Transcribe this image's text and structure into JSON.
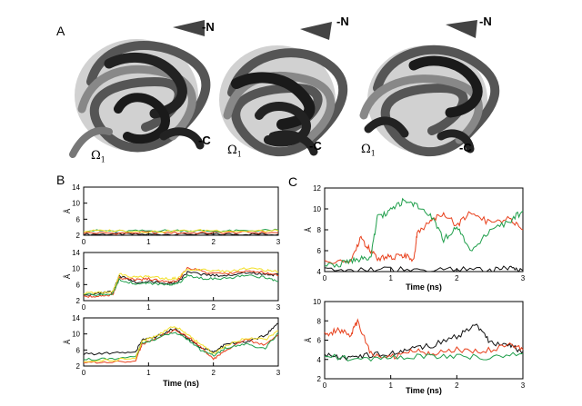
{
  "figure": {
    "panel_a_label": "A",
    "panel_b_label": "B",
    "panel_c_label": "C",
    "structures": [
      {
        "n_label": "-N",
        "c_label": "-C",
        "omega_label": "Ω",
        "omega_sub": "1"
      },
      {
        "n_label": "-N",
        "c_label": "-C",
        "omega_label": "Ω",
        "omega_sub": "1"
      },
      {
        "n_label": "-N",
        "c_label": "-C",
        "omega_label": "Ω",
        "omega_sub": "1"
      }
    ]
  },
  "colors": {
    "black": "#111111",
    "red": "#e8401c",
    "green": "#1e9e4a",
    "yellow": "#f2e02a",
    "gray_band": "#9a9a9a"
  },
  "chart_data": [
    {
      "type": "line",
      "panel": "B",
      "index": 0,
      "xlabel": "",
      "ylabel": "Å",
      "xlim": [
        0,
        3
      ],
      "ylim": [
        2,
        14
      ],
      "yticks": [
        2,
        6,
        10,
        14
      ],
      "xticks": [
        0,
        1,
        2,
        3
      ],
      "series": [
        {
          "color": "#111111",
          "x": [
            0,
            0.5,
            1,
            1.5,
            2,
            2.5,
            3
          ],
          "values": [
            2.2,
            2.3,
            2.2,
            2.3,
            2.2,
            2.3,
            2.2
          ]
        },
        {
          "color": "#e8401c",
          "x": [
            0,
            0.5,
            1,
            1.5,
            2,
            2.5,
            3
          ],
          "values": [
            2.6,
            2.5,
            2.7,
            2.6,
            2.6,
            2.7,
            2.6
          ]
        },
        {
          "color": "#1e9e4a",
          "x": [
            0,
            0.5,
            1,
            1.5,
            2,
            2.5,
            3
          ],
          "values": [
            3.2,
            3.0,
            3.1,
            3.2,
            3.0,
            3.1,
            3.3
          ]
        },
        {
          "color": "#f2e02a",
          "x": [
            0,
            0.5,
            1,
            1.5,
            2,
            2.5,
            3
          ],
          "values": [
            3.0,
            3.2,
            2.9,
            3.1,
            3.2,
            3.0,
            3.1
          ]
        }
      ]
    },
    {
      "type": "line",
      "panel": "B",
      "index": 1,
      "xlabel": "",
      "ylabel": "Å",
      "xlim": [
        0,
        3
      ],
      "ylim": [
        2,
        14
      ],
      "yticks": [
        2,
        6,
        10,
        14
      ],
      "xticks": [
        0,
        1,
        2,
        3
      ],
      "series": [
        {
          "color": "#111111",
          "x": [
            0,
            0.25,
            0.45,
            0.55,
            0.8,
            1.0,
            1.3,
            1.45,
            1.6,
            1.9,
            2.2,
            2.5,
            2.8,
            3.0
          ],
          "values": [
            3.4,
            3.8,
            4.2,
            8.2,
            6.6,
            6.8,
            6.4,
            6.6,
            9.0,
            8.4,
            8.2,
            9.0,
            8.6,
            8.4
          ]
        },
        {
          "color": "#e8401c",
          "x": [
            0,
            0.25,
            0.45,
            0.55,
            0.8,
            1.0,
            1.3,
            1.45,
            1.6,
            1.9,
            2.2,
            2.5,
            2.8,
            3.0
          ],
          "values": [
            3.0,
            3.2,
            3.6,
            7.6,
            7.2,
            7.4,
            6.8,
            7.0,
            10.2,
            9.0,
            8.6,
            9.4,
            9.0,
            8.2
          ]
        },
        {
          "color": "#1e9e4a",
          "x": [
            0,
            0.25,
            0.45,
            0.55,
            0.8,
            1.0,
            1.3,
            1.45,
            1.6,
            1.9,
            2.2,
            2.5,
            2.8,
            3.0
          ],
          "values": [
            3.6,
            3.4,
            3.8,
            7.2,
            6.2,
            6.4,
            6.0,
            6.2,
            8.2,
            7.4,
            7.6,
            8.2,
            7.8,
            6.8
          ]
        },
        {
          "color": "#f2e02a",
          "x": [
            0,
            0.25,
            0.45,
            0.55,
            0.8,
            1.0,
            1.3,
            1.45,
            1.6,
            1.9,
            2.2,
            2.5,
            2.8,
            3.0
          ],
          "values": [
            3.8,
            4.0,
            4.2,
            8.6,
            7.8,
            8.0,
            7.4,
            7.6,
            9.8,
            9.6,
            9.2,
            10.0,
            9.6,
            9.2
          ]
        }
      ]
    },
    {
      "type": "line",
      "panel": "B",
      "index": 2,
      "xlabel": "Time (ns)",
      "ylabel": "Å",
      "xlim": [
        0,
        3
      ],
      "ylim": [
        2,
        14
      ],
      "yticks": [
        2,
        6,
        10,
        14
      ],
      "xticks": [
        0,
        1,
        2,
        3
      ],
      "series": [
        {
          "color": "#111111",
          "x": [
            0,
            0.4,
            0.8,
            0.9,
            1.1,
            1.4,
            1.6,
            1.8,
            2.0,
            2.2,
            2.5,
            2.8,
            3.0
          ],
          "values": [
            5.0,
            5.2,
            5.4,
            8.6,
            9.2,
            11.4,
            9.0,
            6.4,
            5.6,
            7.6,
            8.0,
            9.6,
            12.6
          ]
        },
        {
          "color": "#e8401c",
          "x": [
            0,
            0.4,
            0.8,
            0.9,
            1.1,
            1.4,
            1.6,
            1.8,
            2.0,
            2.2,
            2.5,
            2.8,
            3.0
          ],
          "values": [
            2.8,
            3.0,
            3.2,
            7.4,
            8.8,
            11.0,
            9.4,
            6.8,
            3.6,
            6.0,
            8.6,
            7.2,
            9.8
          ]
        },
        {
          "color": "#1e9e4a",
          "x": [
            0,
            0.4,
            0.8,
            0.9,
            1.1,
            1.4,
            1.6,
            1.8,
            2.0,
            2.2,
            2.5,
            2.8,
            3.0
          ],
          "values": [
            3.6,
            3.8,
            4.2,
            7.8,
            8.6,
            10.6,
            8.6,
            6.0,
            4.6,
            6.6,
            7.4,
            6.4,
            10.2
          ]
        },
        {
          "color": "#f2e02a",
          "x": [
            0,
            0.4,
            0.8,
            0.9,
            1.1,
            1.4,
            1.6,
            1.8,
            2.0,
            2.2,
            2.5,
            2.8,
            3.0
          ],
          "values": [
            3.2,
            3.4,
            4.0,
            8.2,
            9.4,
            12.0,
            10.0,
            7.4,
            5.2,
            7.2,
            9.0,
            8.6,
            10.8
          ]
        }
      ]
    },
    {
      "type": "line",
      "panel": "C",
      "index": 0,
      "xlabel": "Time (ns)",
      "ylabel": "Å",
      "xlim": [
        0,
        3
      ],
      "ylim": [
        4,
        12
      ],
      "yticks": [
        4,
        6,
        8,
        10,
        12
      ],
      "xticks": [
        0,
        1,
        2,
        3
      ],
      "series": [
        {
          "color": "#111111",
          "x": [
            0,
            0.5,
            1,
            1.5,
            2,
            2.5,
            2.8,
            3.0
          ],
          "values": [
            4.1,
            4.1,
            4.2,
            4.1,
            4.2,
            4.1,
            4.3,
            4.1
          ]
        },
        {
          "color": "#e8401c",
          "x": [
            0,
            0.4,
            0.55,
            0.65,
            0.8,
            1.0,
            1.2,
            1.35,
            1.4,
            1.6,
            1.8,
            2.0,
            2.2,
            2.5,
            2.8,
            3.0
          ],
          "values": [
            4.8,
            5.0,
            7.2,
            6.4,
            5.2,
            5.4,
            5.6,
            5.2,
            7.6,
            8.8,
            9.6,
            8.4,
            9.8,
            8.6,
            9.2,
            8.0
          ]
        },
        {
          "color": "#1e9e4a",
          "x": [
            0,
            0.3,
            0.5,
            0.7,
            0.8,
            1.0,
            1.2,
            1.4,
            1.6,
            1.8,
            2.0,
            2.2,
            2.5,
            2.8,
            3.0
          ],
          "values": [
            4.6,
            4.8,
            5.2,
            5.4,
            9.2,
            9.8,
            10.8,
            10.2,
            9.4,
            7.0,
            8.4,
            6.0,
            7.8,
            8.8,
            9.8
          ]
        }
      ]
    },
    {
      "type": "line",
      "panel": "C",
      "index": 1,
      "xlabel": "Time (ns)",
      "ylabel": "Å",
      "xlim": [
        0,
        3
      ],
      "ylim": [
        2,
        10
      ],
      "yticks": [
        2,
        4,
        6,
        8,
        10
      ],
      "xticks": [
        0,
        1,
        2,
        3
      ],
      "series": [
        {
          "color": "#111111",
          "x": [
            0,
            0.3,
            0.6,
            1.0,
            1.3,
            1.6,
            2.0,
            2.3,
            2.5,
            2.8,
            3.0
          ],
          "values": [
            4.6,
            4.2,
            4.4,
            4.6,
            5.2,
            5.4,
            6.4,
            7.6,
            5.8,
            5.4,
            4.8
          ]
        },
        {
          "color": "#e8401c",
          "x": [
            0,
            0.2,
            0.4,
            0.5,
            0.7,
            1.0,
            1.3,
            1.6,
            2.0,
            2.4,
            2.8,
            3.0
          ],
          "values": [
            6.6,
            7.0,
            6.6,
            8.0,
            4.6,
            4.2,
            5.0,
            4.6,
            5.0,
            4.8,
            5.6,
            5.0
          ]
        },
        {
          "color": "#1e9e4a",
          "x": [
            0,
            0.5,
            1,
            1.5,
            2,
            2.5,
            3
          ],
          "values": [
            4.4,
            4.0,
            4.2,
            4.3,
            4.4,
            4.2,
            4.6
          ]
        }
      ]
    }
  ]
}
